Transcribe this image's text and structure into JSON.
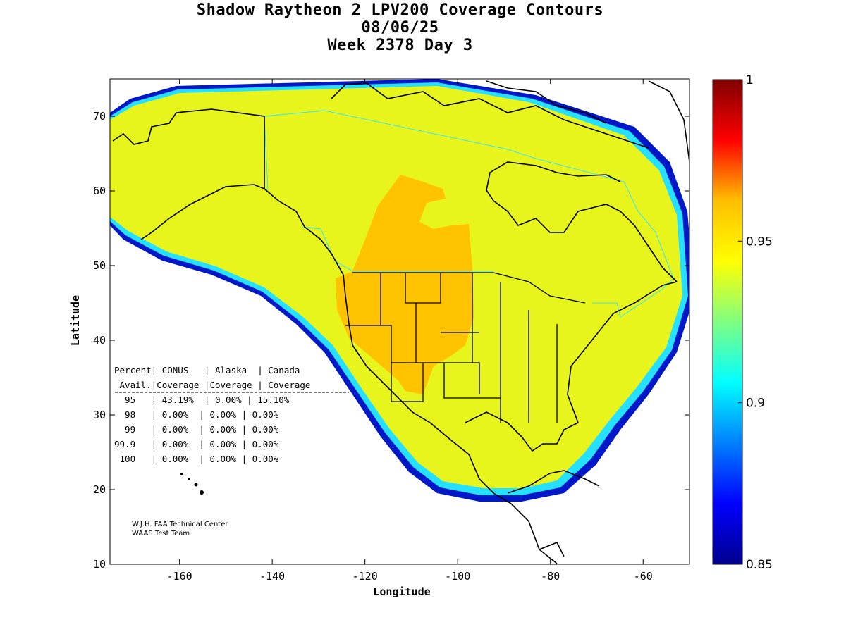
{
  "title": {
    "line1": "Shadow Raytheon 2 LPV200 Coverage Contours",
    "line2": "08/06/25",
    "line3": "Week 2378 Day 3"
  },
  "axes": {
    "xlabel": "Longitude",
    "ylabel": "Latitude",
    "xlim": [
      -175,
      -50
    ],
    "ylim": [
      10,
      75
    ],
    "xticks": [
      -160,
      -140,
      -120,
      -100,
      -80,
      -60
    ],
    "yticks": [
      10,
      20,
      30,
      40,
      50,
      60,
      70
    ]
  },
  "colorbar": {
    "min": 0.85,
    "max": 1,
    "labels": [
      "1",
      "0.95",
      "0.9",
      "0.85"
    ],
    "colors": [
      "#00008f",
      "#0000ff",
      "#0080ff",
      "#00ffff",
      "#80ff80",
      "#ffff00",
      "#ff8000",
      "#ff0000",
      "#800000"
    ]
  },
  "coverage_table": {
    "header1": "Percent| CONUS   | Alaska  | Canada",
    "header2": " Avail.|Coverage |Coverage | Coverage",
    "rows": [
      "  95   | 43.19%  | 0.00% | 15.10%",
      "  98   | 0.00%  | 0.00% | 0.00%",
      "  99   | 0.00%  | 0.00% | 0.00%",
      "99.9   | 0.00%  | 0.00% | 0.00%",
      " 100   | 0.00%  | 0.00% | 0.00%"
    ]
  },
  "credits": {
    "line1": "W.J.H. FAA Technical Center",
    "line2": "WAAS Test Team"
  },
  "regions": [
    {
      "name": "coverage-fringe",
      "value": 0.86,
      "color": "#0010c0"
    },
    {
      "name": "coverage-mid",
      "value": 0.9,
      "color": "#20e8ff"
    },
    {
      "name": "coverage-main",
      "value": 0.945,
      "color": "#e8f51a"
    },
    {
      "name": "coverage-high",
      "value": 0.955,
      "color": "#ffc400"
    }
  ]
}
